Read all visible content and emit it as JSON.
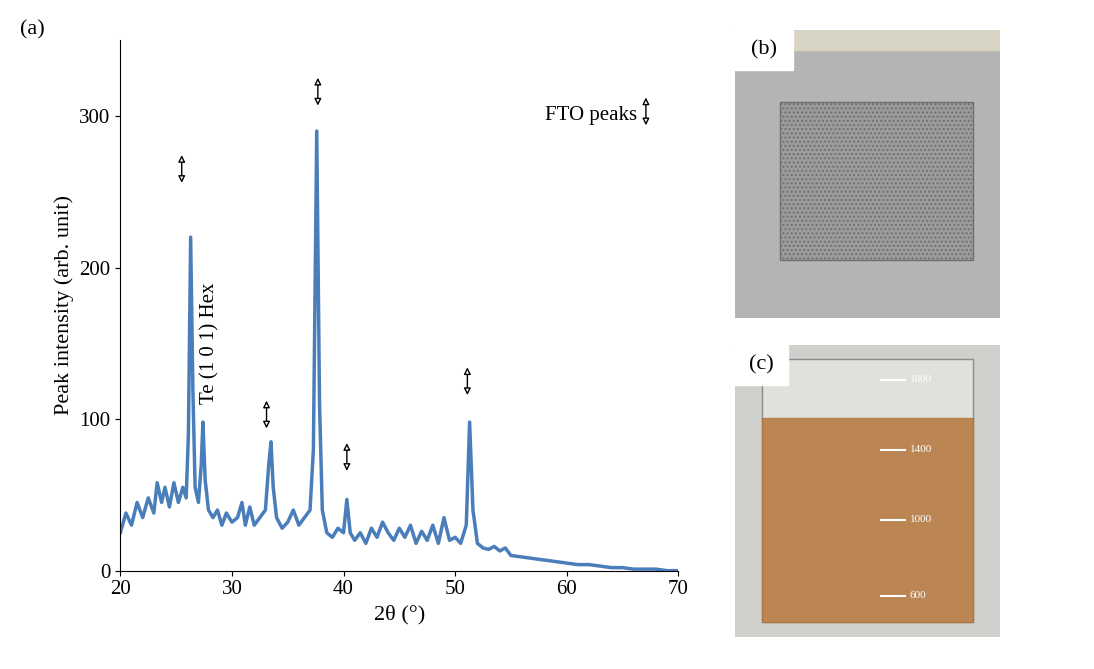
{
  "chart_data": {
    "type": "line",
    "color": "#4a7ebb",
    "x_label": "2θ (°)",
    "y_label": "Peak intensity (arb. unit)",
    "xlim": [
      20,
      70
    ],
    "xticks": [
      20,
      30,
      40,
      50,
      60,
      70
    ],
    "ylim": [
      0,
      350
    ],
    "yticks": [
      0,
      100,
      200,
      300
    ],
    "x": [
      20,
      20.5,
      21,
      21.5,
      22,
      22.5,
      23,
      23.3,
      23.7,
      24,
      24.4,
      24.8,
      25.2,
      25.6,
      25.9,
      26.1,
      26.3,
      26.5,
      26.7,
      27.0,
      27.25,
      27.4,
      27.6,
      27.9,
      28.3,
      28.7,
      29.1,
      29.5,
      30.0,
      30.5,
      30.9,
      31.2,
      31.6,
      32.0,
      32.5,
      33.0,
      33.3,
      33.5,
      33.7,
      34.0,
      34.5,
      35.0,
      35.5,
      36.0,
      36.5,
      37.0,
      37.3,
      37.6,
      37.85,
      38.1,
      38.5,
      39.0,
      39.5,
      40.0,
      40.3,
      40.6,
      41.0,
      41.5,
      42.0,
      42.5,
      43.0,
      43.5,
      44.0,
      44.5,
      45.0,
      45.5,
      46.0,
      46.5,
      47.0,
      47.5,
      48.0,
      48.5,
      49.0,
      49.5,
      50.0,
      50.5,
      51.0,
      51.3,
      51.6,
      52.0,
      52.5,
      53.0,
      53.5,
      54.0,
      54.5,
      55.0,
      56,
      57,
      58,
      59,
      60,
      61,
      62,
      63,
      64,
      65,
      66,
      67,
      68,
      69,
      70
    ],
    "values": [
      25,
      38,
      30,
      45,
      35,
      48,
      38,
      58,
      45,
      55,
      42,
      58,
      45,
      55,
      48,
      90,
      220,
      120,
      55,
      45,
      70,
      98,
      60,
      40,
      35,
      40,
      30,
      38,
      32,
      35,
      45,
      30,
      42,
      30,
      35,
      40,
      70,
      85,
      55,
      35,
      28,
      32,
      40,
      30,
      35,
      40,
      80,
      290,
      110,
      40,
      25,
      22,
      28,
      25,
      47,
      25,
      20,
      25,
      18,
      28,
      22,
      32,
      25,
      20,
      28,
      22,
      30,
      18,
      26,
      20,
      30,
      18,
      35,
      20,
      22,
      18,
      30,
      98,
      40,
      18,
      15,
      14,
      16,
      13,
      15,
      10,
      9,
      8,
      7,
      6,
      5,
      4,
      4,
      3,
      2,
      2,
      1,
      1,
      1,
      0,
      0
    ],
    "annotations": [
      {
        "text": "Te (1 0 1) Hex",
        "x": 28.0,
        "y": 150
      },
      {
        "text": "FTO peaks",
        "x": 66.3,
        "y": 300
      }
    ],
    "markers": {
      "name": "FTO peaks",
      "points": [
        {
          "x": 25.5,
          "y": 265
        },
        {
          "x": 37.7,
          "y": 316
        },
        {
          "x": 33.1,
          "y": 103
        },
        {
          "x": 40.3,
          "y": 75
        },
        {
          "x": 51.1,
          "y": 125
        }
      ],
      "key": {
        "x": 67.1,
        "y": 303
      }
    }
  },
  "panel_labels": [
    "(a)",
    "(b)",
    "(c)"
  ],
  "photo_c_scale": [
    1800,
    1400,
    1000,
    600
  ]
}
